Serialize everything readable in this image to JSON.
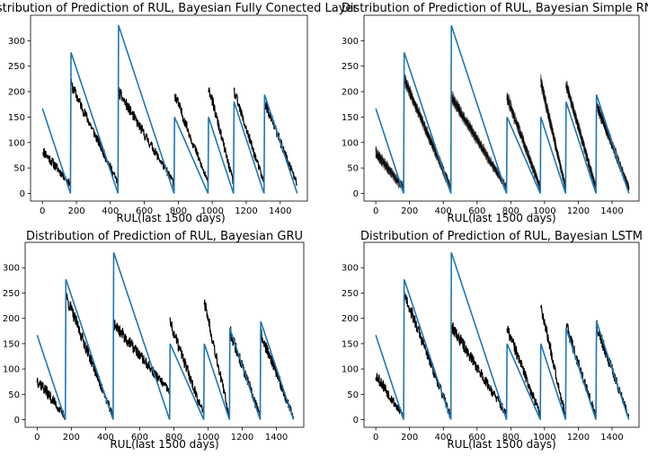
{
  "colors": {
    "true_rul": "#1f77b4",
    "prediction": "#000000",
    "axes": "#000000"
  },
  "chart_data": [
    {
      "type": "line",
      "title": "Distribution of Prediction of RUL, Bayesian Fully Conected Layer",
      "xlabel": "RUL(last 1500 days)",
      "ylabel": "",
      "xlim": [
        -70,
        1560
      ],
      "ylim": [
        -15,
        350
      ],
      "xticks": [
        0,
        200,
        400,
        600,
        800,
        1000,
        1200,
        1400
      ],
      "yticks": [
        0,
        50,
        100,
        150,
        200,
        250,
        300
      ],
      "true_segments": [
        [
          0,
          167,
          165,
          0
        ],
        [
          168,
          277,
          445,
          0
        ],
        [
          448,
          330,
          775,
          0
        ],
        [
          778,
          150,
          975,
          0
        ],
        [
          978,
          150,
          1125,
          0
        ],
        [
          1128,
          180,
          1305,
          0
        ],
        [
          1308,
          194,
          1500,
          0
        ]
      ],
      "pred_segments": [
        [
          0,
          85,
          165,
          18
        ],
        [
          168,
          215,
          445,
          20
        ],
        [
          448,
          200,
          775,
          20
        ],
        [
          778,
          195,
          975,
          20
        ],
        [
          978,
          210,
          1125,
          20
        ],
        [
          1128,
          200,
          1305,
          20
        ],
        [
          1308,
          180,
          1500,
          18
        ]
      ],
      "pred_noise": 12,
      "pred_spread": 0,
      "seed": 11
    },
    {
      "type": "line",
      "title": "Distribution of Prediction of RUL, Bayesian Simple RNN",
      "xlabel": "RUL(last 1500 days)",
      "ylabel": "",
      "xlim": [
        -70,
        1560
      ],
      "ylim": [
        -15,
        350
      ],
      "xticks": [
        0,
        200,
        400,
        600,
        800,
        1000,
        1200,
        1400
      ],
      "yticks": [
        0,
        50,
        100,
        150,
        200,
        250,
        300
      ],
      "true_segments": [
        [
          0,
          167,
          165,
          0
        ],
        [
          168,
          277,
          445,
          0
        ],
        [
          448,
          330,
          775,
          0
        ],
        [
          778,
          150,
          975,
          0
        ],
        [
          978,
          150,
          1125,
          0
        ],
        [
          1128,
          180,
          1305,
          0
        ],
        [
          1308,
          194,
          1500,
          0
        ]
      ],
      "pred_segments": [
        [
          0,
          80,
          165,
          10
        ],
        [
          168,
          225,
          445,
          10
        ],
        [
          448,
          190,
          775,
          10
        ],
        [
          778,
          190,
          975,
          10
        ],
        [
          978,
          220,
          1125,
          10
        ],
        [
          1128,
          215,
          1305,
          10
        ],
        [
          1308,
          175,
          1500,
          10
        ]
      ],
      "pred_noise": 10,
      "pred_spread": 10,
      "seed": 23
    },
    {
      "type": "line",
      "title": "Distribution of Prediction of RUL, Bayesian GRU",
      "xlabel": "RUL(last 1500 days)",
      "ylabel": "",
      "xlim": [
        -70,
        1560
      ],
      "ylim": [
        -15,
        350
      ],
      "xticks": [
        0,
        200,
        400,
        600,
        800,
        1000,
        1200,
        1400
      ],
      "yticks": [
        0,
        50,
        100,
        150,
        200,
        250,
        300
      ],
      "true_segments": [
        [
          0,
          167,
          165,
          0
        ],
        [
          168,
          277,
          445,
          0
        ],
        [
          448,
          330,
          775,
          0
        ],
        [
          778,
          150,
          975,
          0
        ],
        [
          978,
          150,
          1125,
          0
        ],
        [
          1128,
          180,
          1305,
          0
        ],
        [
          1308,
          194,
          1500,
          0
        ]
      ],
      "pred_segments": [
        [
          0,
          80,
          165,
          5
        ],
        [
          168,
          245,
          445,
          5
        ],
        [
          448,
          190,
          775,
          55
        ],
        [
          778,
          190,
          975,
          10
        ],
        [
          978,
          235,
          1125,
          5
        ],
        [
          1128,
          175,
          1305,
          5
        ],
        [
          1308,
          170,
          1500,
          5
        ]
      ],
      "pred_noise": 14,
      "pred_spread": 0,
      "seed": 37
    },
    {
      "type": "line",
      "title": "Distribution of Prediction of RUL, Bayesian LSTM",
      "xlabel": "RUL(last 1500 days)",
      "ylabel": "",
      "xlim": [
        -70,
        1560
      ],
      "ylim": [
        -15,
        350
      ],
      "xticks": [
        0,
        200,
        400,
        600,
        800,
        1000,
        1200,
        1400
      ],
      "yticks": [
        0,
        50,
        100,
        150,
        200,
        250,
        300
      ],
      "true_segments": [
        [
          0,
          167,
          165,
          0
        ],
        [
          168,
          277,
          445,
          0
        ],
        [
          448,
          330,
          775,
          0
        ],
        [
          778,
          150,
          975,
          0
        ],
        [
          978,
          150,
          1125,
          0
        ],
        [
          1128,
          180,
          1305,
          0
        ],
        [
          1308,
          194,
          1500,
          0
        ]
      ],
      "pred_segments": [
        [
          0,
          90,
          165,
          5
        ],
        [
          168,
          250,
          445,
          5
        ],
        [
          448,
          185,
          775,
          10
        ],
        [
          778,
          180,
          975,
          10
        ],
        [
          978,
          225,
          1125,
          5
        ],
        [
          1128,
          185,
          1305,
          5
        ],
        [
          1308,
          185,
          1500,
          5
        ]
      ],
      "pred_noise": 14,
      "pred_spread": 0,
      "seed": 53
    }
  ]
}
